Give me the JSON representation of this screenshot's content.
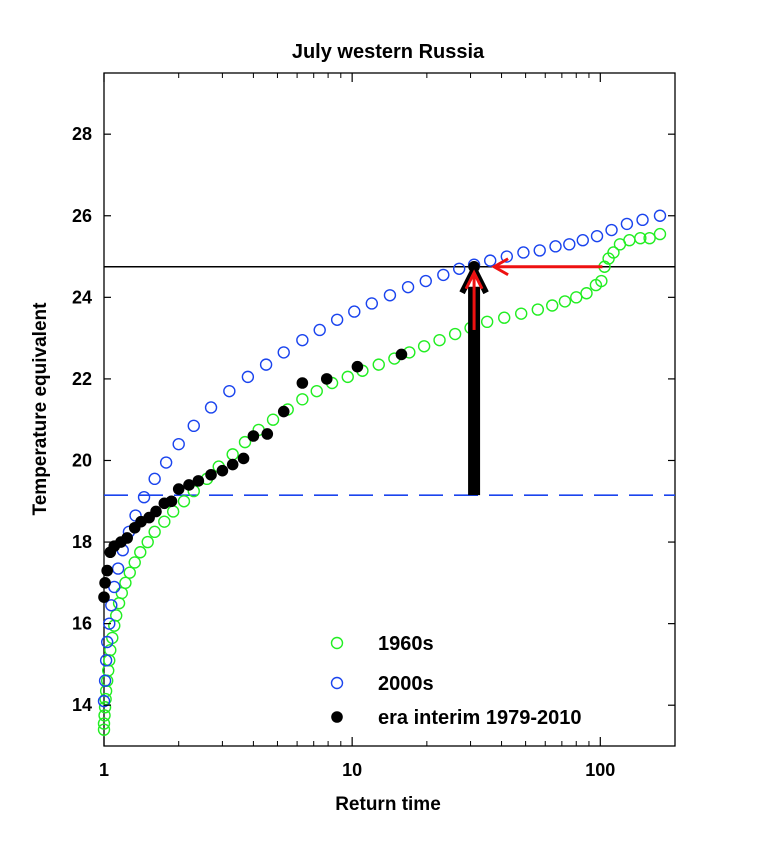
{
  "chart_data": {
    "type": "scatter",
    "title": "July western Russia",
    "xlabel": "Return time",
    "ylabel": "Temperature equivalent",
    "xscale": "log",
    "xlim": [
      1,
      200
    ],
    "ylim": [
      13,
      29.5
    ],
    "xticks": [
      1,
      10,
      100
    ],
    "xtick_labels": [
      "1",
      "10",
      "100"
    ],
    "yticks": [
      14,
      16,
      18,
      20,
      22,
      24,
      26,
      28
    ],
    "ytick_labels": [
      "14",
      "16",
      "18",
      "20",
      "22",
      "24",
      "26",
      "28"
    ],
    "grid": false,
    "legend_position": "bottom-center",
    "colors": {
      "s1960s": "#22ee22",
      "s2000s": "#1a44ee",
      "era": "#000000",
      "dashed_line": "#1a44ee",
      "arrow_red": "#ee1111",
      "arrow_black": "#000000",
      "hline": "#000000"
    },
    "reference_lines": [
      {
        "type": "horizontal",
        "y": 24.75,
        "style": "solid",
        "color": "#000000"
      },
      {
        "type": "horizontal",
        "y": 19.15,
        "style": "dashed",
        "color": "#1a44ee"
      }
    ],
    "arrows": [
      {
        "color": "#000000",
        "from": [
          31,
          19.15
        ],
        "to": [
          31,
          24.75
        ]
      },
      {
        "color": "#ee1111",
        "from": [
          31,
          19.15
        ],
        "to": [
          31,
          24.75
        ]
      },
      {
        "color": "#ee1111",
        "from": [
          102,
          24.75
        ],
        "to": [
          31,
          24.75
        ]
      }
    ],
    "series": [
      {
        "name": "1960s",
        "marker": "open-circle",
        "color": "#22ee22",
        "points": [
          [
            1.0,
            13.4
          ],
          [
            1.0,
            13.55
          ],
          [
            1.005,
            13.75
          ],
          [
            1.01,
            13.95
          ],
          [
            1.015,
            14.15
          ],
          [
            1.02,
            14.35
          ],
          [
            1.03,
            14.6
          ],
          [
            1.04,
            14.85
          ],
          [
            1.05,
            15.1
          ],
          [
            1.06,
            15.35
          ],
          [
            1.08,
            15.65
          ],
          [
            1.1,
            15.95
          ],
          [
            1.12,
            16.2
          ],
          [
            1.15,
            16.5
          ],
          [
            1.18,
            16.75
          ],
          [
            1.22,
            17.0
          ],
          [
            1.27,
            17.25
          ],
          [
            1.33,
            17.5
          ],
          [
            1.4,
            17.75
          ],
          [
            1.5,
            18.0
          ],
          [
            1.6,
            18.25
          ],
          [
            1.75,
            18.5
          ],
          [
            1.9,
            18.75
          ],
          [
            2.1,
            19.0
          ],
          [
            2.3,
            19.25
          ],
          [
            2.6,
            19.55
          ],
          [
            2.9,
            19.85
          ],
          [
            3.3,
            20.15
          ],
          [
            3.7,
            20.45
          ],
          [
            4.2,
            20.75
          ],
          [
            4.8,
            21.0
          ],
          [
            5.5,
            21.25
          ],
          [
            6.3,
            21.5
          ],
          [
            7.2,
            21.7
          ],
          [
            8.3,
            21.9
          ],
          [
            9.6,
            22.05
          ],
          [
            11.0,
            22.2
          ],
          [
            12.8,
            22.35
          ],
          [
            14.8,
            22.5
          ],
          [
            17.0,
            22.65
          ],
          [
            19.5,
            22.8
          ],
          [
            22.5,
            22.95
          ],
          [
            26.0,
            23.1
          ],
          [
            30.0,
            23.25
          ],
          [
            35.0,
            23.4
          ],
          [
            41.0,
            23.5
          ],
          [
            48.0,
            23.6
          ],
          [
            56.0,
            23.7
          ],
          [
            64.0,
            23.8
          ],
          [
            72.0,
            23.9
          ],
          [
            80.0,
            24.0
          ],
          [
            88.0,
            24.1
          ],
          [
            96.0,
            24.3
          ],
          [
            101.0,
            24.4
          ],
          [
            104.0,
            24.75
          ],
          [
            108.0,
            24.95
          ],
          [
            113.0,
            25.1
          ],
          [
            120.0,
            25.3
          ],
          [
            131.0,
            25.4
          ],
          [
            145.0,
            25.45
          ],
          [
            158.0,
            25.45
          ],
          [
            174.0,
            25.55
          ]
        ]
      },
      {
        "name": "2000s",
        "marker": "open-circle",
        "color": "#1a44ee",
        "points": [
          [
            1.0,
            14.1
          ],
          [
            1.01,
            14.6
          ],
          [
            1.02,
            15.1
          ],
          [
            1.03,
            15.55
          ],
          [
            1.05,
            16.0
          ],
          [
            1.07,
            16.45
          ],
          [
            1.1,
            16.9
          ],
          [
            1.14,
            17.35
          ],
          [
            1.19,
            17.8
          ],
          [
            1.26,
            18.25
          ],
          [
            1.34,
            18.65
          ],
          [
            1.45,
            19.1
          ],
          [
            1.6,
            19.55
          ],
          [
            1.78,
            19.95
          ],
          [
            2.0,
            20.4
          ],
          [
            2.3,
            20.85
          ],
          [
            2.7,
            21.3
          ],
          [
            3.2,
            21.7
          ],
          [
            3.8,
            22.05
          ],
          [
            4.5,
            22.35
          ],
          [
            5.3,
            22.65
          ],
          [
            6.3,
            22.95
          ],
          [
            7.4,
            23.2
          ],
          [
            8.7,
            23.45
          ],
          [
            10.2,
            23.65
          ],
          [
            12.0,
            23.85
          ],
          [
            14.2,
            24.05
          ],
          [
            16.8,
            24.25
          ],
          [
            19.8,
            24.4
          ],
          [
            23.3,
            24.55
          ],
          [
            27.0,
            24.7
          ],
          [
            31.0,
            24.8
          ],
          [
            36.0,
            24.9
          ],
          [
            42.0,
            25.0
          ],
          [
            49.0,
            25.1
          ],
          [
            57.0,
            25.15
          ],
          [
            66.0,
            25.25
          ],
          [
            75.0,
            25.3
          ],
          [
            85.0,
            25.4
          ],
          [
            97.0,
            25.5
          ],
          [
            111.0,
            25.65
          ],
          [
            128.0,
            25.8
          ],
          [
            148.0,
            25.9
          ],
          [
            174.0,
            26.0
          ]
        ]
      },
      {
        "name": "era interim 1979-2010",
        "marker": "filled-circle",
        "color": "#000000",
        "points": [
          [
            1.0,
            16.65
          ],
          [
            1.01,
            17.0
          ],
          [
            1.03,
            17.3
          ],
          [
            1.06,
            17.75
          ],
          [
            1.1,
            17.9
          ],
          [
            1.17,
            18.0
          ],
          [
            1.24,
            18.1
          ],
          [
            1.33,
            18.35
          ],
          [
            1.41,
            18.5
          ],
          [
            1.52,
            18.6
          ],
          [
            1.62,
            18.75
          ],
          [
            1.75,
            18.95
          ],
          [
            1.87,
            19.0
          ],
          [
            2.0,
            19.3
          ],
          [
            2.2,
            19.4
          ],
          [
            2.4,
            19.5
          ],
          [
            2.7,
            19.65
          ],
          [
            3.0,
            19.75
          ],
          [
            3.3,
            19.9
          ],
          [
            3.65,
            20.05
          ],
          [
            4.0,
            20.6
          ],
          [
            4.55,
            20.65
          ],
          [
            5.3,
            21.2
          ],
          [
            6.3,
            21.9
          ],
          [
            7.9,
            22.0
          ],
          [
            10.5,
            22.3
          ],
          [
            15.8,
            22.6
          ],
          [
            31.0,
            24.75
          ]
        ]
      }
    ]
  }
}
